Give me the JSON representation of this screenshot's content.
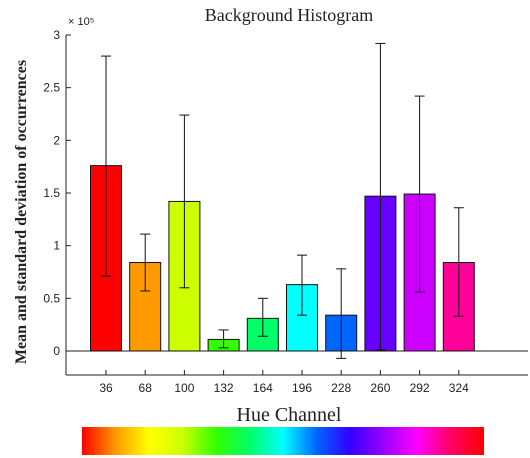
{
  "chart_data": {
    "type": "bar",
    "title": "Background Histogram",
    "xlabel": "Hue Channel",
    "ylabel": "Mean and standard deviation of occurrences",
    "y_multiplier_label": "× 10⁵",
    "categories": [
      "36",
      "68",
      "100",
      "132",
      "164",
      "196",
      "228",
      "260",
      "292",
      "324"
    ],
    "values": [
      1.76,
      0.84,
      1.42,
      0.11,
      0.31,
      0.63,
      0.34,
      1.47,
      1.49,
      0.84
    ],
    "error_low": [
      0.71,
      0.57,
      0.6,
      0.03,
      0.14,
      0.34,
      -0.07,
      0.01,
      0.56,
      0.33
    ],
    "error_high": [
      2.8,
      1.11,
      2.24,
      0.2,
      0.5,
      0.91,
      0.78,
      2.92,
      2.42,
      1.36
    ],
    "bar_colors": [
      "#ff0000",
      "#ff9900",
      "#ccff00",
      "#33ff00",
      "#00ff66",
      "#00ffff",
      "#0066ff",
      "#6600ff",
      "#cc00ff",
      "#ff0099"
    ],
    "ylim": [
      0,
      3
    ],
    "y_ticks": [
      "0",
      "0.5",
      "1",
      "1.5",
      "2",
      "2.5",
      "3"
    ],
    "grid": false,
    "colorbar": [
      "#ff0000",
      "#ff9900",
      "#ffff00",
      "#ccff00",
      "#33ff00",
      "#00ff66",
      "#00ffff",
      "#0066ff",
      "#3300ff",
      "#9900ff",
      "#ff00ff",
      "#ff0066",
      "#ff0000"
    ]
  }
}
